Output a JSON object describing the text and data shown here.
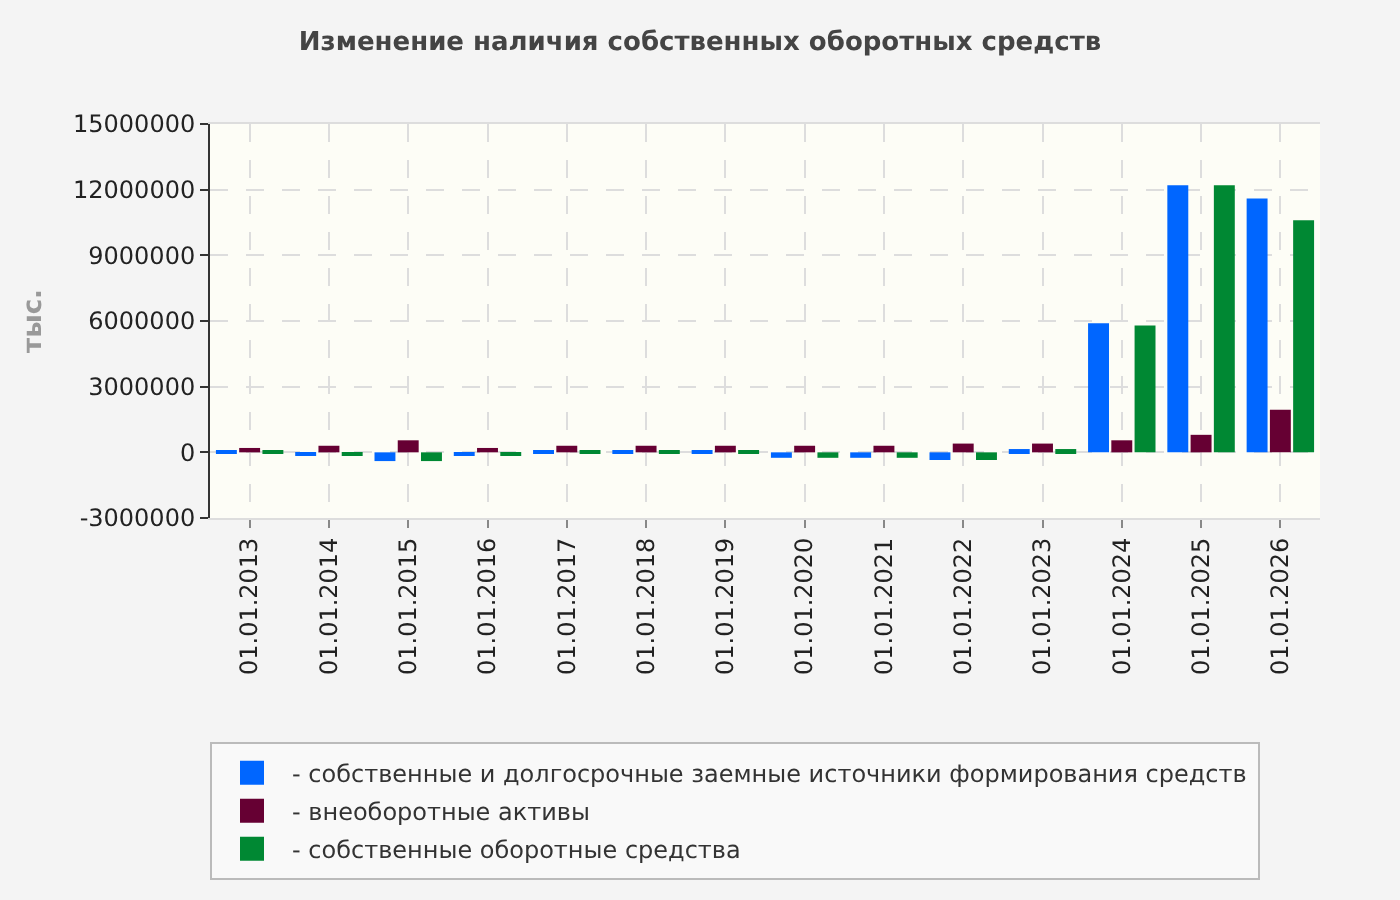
{
  "chart_data": {
    "type": "bar",
    "title": "Изменение наличия собственных оборотных средств",
    "ylabel": "тыс.",
    "categories": [
      "01.01.2013",
      "01.01.2014",
      "01.01.2015",
      "01.01.2016",
      "01.01.2017",
      "01.01.2018",
      "01.01.2019",
      "01.01.2020",
      "01.01.2021",
      "01.01.2022",
      "01.01.2023",
      "01.01.2024",
      "01.01.2025",
      "01.01.2026"
    ],
    "series": [
      {
        "name": "- собственные и долгосрочные заемные источники формирования средств",
        "color": "#0066ff",
        "values": [
          50000,
          -100000,
          -400000,
          -150000,
          30000,
          30000,
          30000,
          -250000,
          -250000,
          -350000,
          150000,
          5900000,
          12200000,
          11600000
        ]
      },
      {
        "name": "- внеоборотные активы",
        "color": "#660033",
        "values": [
          200000,
          300000,
          550000,
          200000,
          300000,
          300000,
          300000,
          300000,
          300000,
          400000,
          400000,
          550000,
          800000,
          1950000
        ]
      },
      {
        "name": "- собственные оборотные средства",
        "color": "#008833",
        "values": [
          50000,
          -100000,
          -400000,
          -150000,
          30000,
          30000,
          30000,
          -250000,
          -250000,
          -350000,
          150000,
          5800000,
          12200000,
          10600000
        ]
      }
    ],
    "ylim": [
      -3000000,
      15000000
    ],
    "yticks": [
      -3000000,
      0,
      3000000,
      6000000,
      9000000,
      12000000,
      15000000
    ],
    "grid": true,
    "legend": "bottom left"
  }
}
